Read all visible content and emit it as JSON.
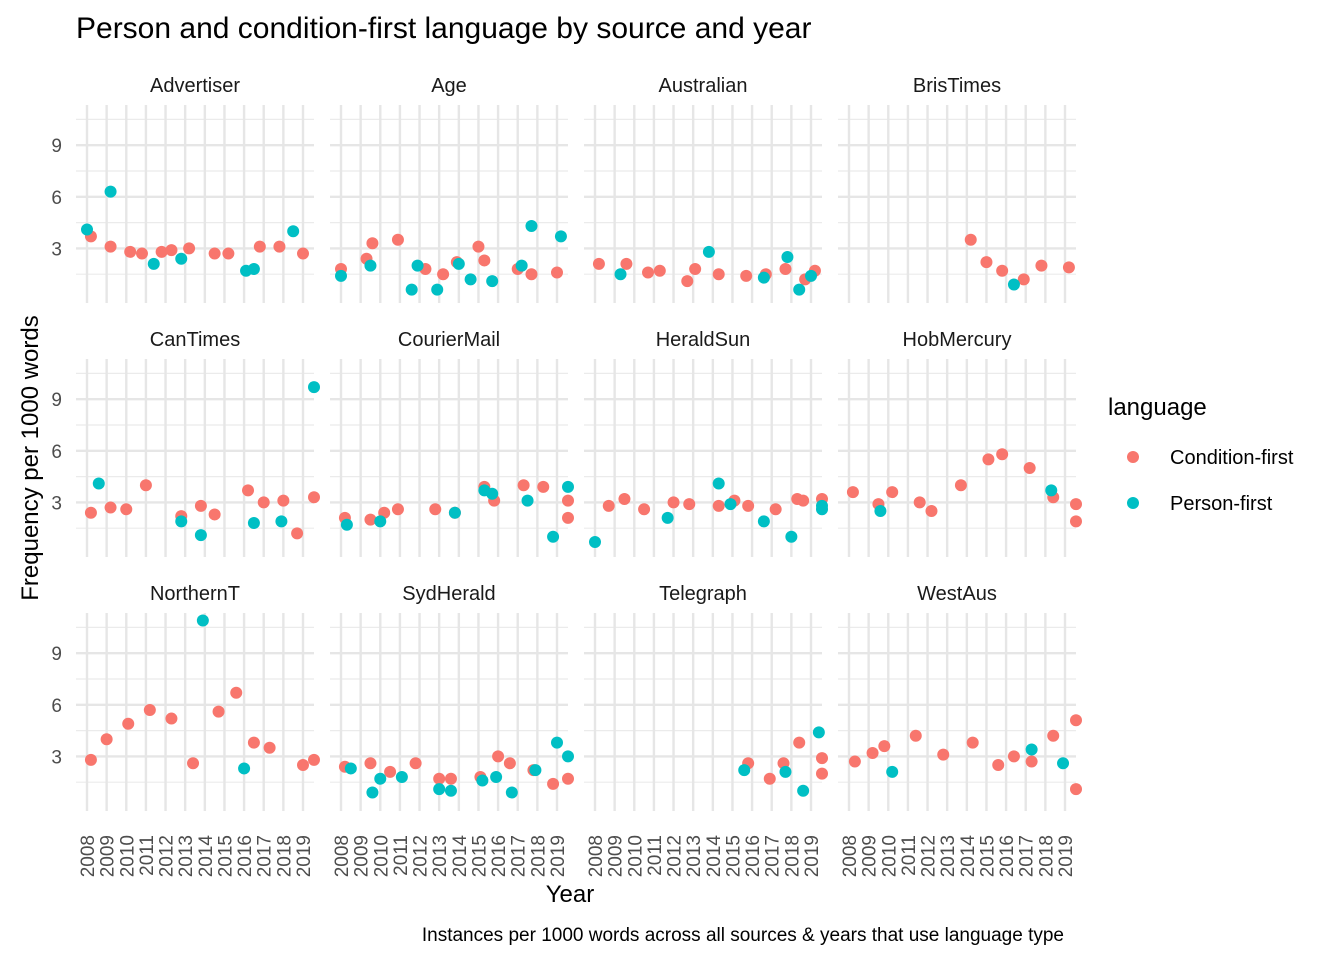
{
  "chart_data": {
    "type": "scatter",
    "title": "Person and condition-first language by source and year",
    "xlabel": "Year",
    "ylabel": "Frequency per 1000 words",
    "caption": "Instances per 1000 words across all sources & years that use language type",
    "x_ticks": [
      "2008",
      "2009",
      "2010",
      "2011",
      "2012",
      "2013",
      "2014",
      "2015",
      "2016",
      "2017",
      "2018",
      "2019"
    ],
    "y_ticks": [
      "3",
      "6",
      "9"
    ],
    "xlim": [
      2008,
      2019
    ],
    "ylim": [
      0,
      11
    ],
    "grid": true,
    "legend": {
      "title": "language",
      "position": "right",
      "items": [
        {
          "name": "Condition-first",
          "color": "#F8766D"
        },
        {
          "name": "Person-first",
          "color": "#00BFC4"
        }
      ]
    },
    "panels": [
      {
        "name": "Advertiser",
        "Condition-first": [
          [
            2008.2,
            3.7
          ],
          [
            2009.2,
            3.1
          ],
          [
            2010.2,
            2.8
          ],
          [
            2010.8,
            2.7
          ],
          [
            2011.8,
            2.8
          ],
          [
            2012.3,
            2.9
          ],
          [
            2013.2,
            3.0
          ],
          [
            2014.5,
            2.7
          ],
          [
            2015.2,
            2.7
          ],
          [
            2016.8,
            3.1
          ],
          [
            2017.8,
            3.1
          ],
          [
            2019.0,
            2.7
          ]
        ],
        "Person-first": [
          [
            2008.0,
            4.1
          ],
          [
            2009.2,
            6.3
          ],
          [
            2011.4,
            2.1
          ],
          [
            2012.8,
            2.4
          ],
          [
            2016.1,
            1.7
          ],
          [
            2016.5,
            1.8
          ],
          [
            2018.5,
            4.0
          ]
        ]
      },
      {
        "name": "Age",
        "Condition-first": [
          [
            2008.0,
            1.8
          ],
          [
            2009.3,
            2.4
          ],
          [
            2009.6,
            3.3
          ],
          [
            2010.9,
            3.5
          ],
          [
            2012.3,
            1.8
          ],
          [
            2013.2,
            1.5
          ],
          [
            2013.9,
            2.2
          ],
          [
            2015.0,
            3.1
          ],
          [
            2015.3,
            2.3
          ],
          [
            2017.0,
            1.8
          ],
          [
            2017.7,
            1.5
          ],
          [
            2019.0,
            1.6
          ]
        ],
        "Person-first": [
          [
            2008.0,
            1.4
          ],
          [
            2009.5,
            2.0
          ],
          [
            2011.6,
            0.6
          ],
          [
            2011.9,
            2.0
          ],
          [
            2012.9,
            0.6
          ],
          [
            2014.0,
            2.1
          ],
          [
            2014.6,
            1.2
          ],
          [
            2015.7,
            1.1
          ],
          [
            2017.2,
            2.0
          ],
          [
            2017.7,
            4.3
          ],
          [
            2019.2,
            3.7
          ]
        ]
      },
      {
        "name": "Australian",
        "Condition-first": [
          [
            2008.2,
            2.1
          ],
          [
            2009.6,
            2.1
          ],
          [
            2010.7,
            1.6
          ],
          [
            2011.3,
            1.7
          ],
          [
            2012.7,
            1.1
          ],
          [
            2013.1,
            1.8
          ],
          [
            2014.3,
            1.5
          ],
          [
            2015.7,
            1.4
          ],
          [
            2016.7,
            1.5
          ],
          [
            2017.7,
            1.8
          ],
          [
            2018.7,
            1.2
          ],
          [
            2019.2,
            1.7
          ]
        ],
        "Person-first": [
          [
            2009.3,
            1.5
          ],
          [
            2013.8,
            2.8
          ],
          [
            2016.6,
            1.3
          ],
          [
            2017.8,
            2.5
          ],
          [
            2018.4,
            0.6
          ],
          [
            2019.0,
            1.4
          ]
        ]
      },
      {
        "name": "BrisTimes",
        "Condition-first": [
          [
            2014.2,
            3.5
          ],
          [
            2015.0,
            2.2
          ],
          [
            2015.8,
            1.7
          ],
          [
            2016.9,
            1.2
          ],
          [
            2017.8,
            2.0
          ],
          [
            2019.2,
            1.9
          ]
        ],
        "Person-first": [
          [
            2016.4,
            0.9
          ]
        ]
      },
      {
        "name": "CanTimes",
        "Condition-first": [
          [
            2008.2,
            2.4
          ],
          [
            2009.2,
            2.7
          ],
          [
            2010.0,
            2.6
          ],
          [
            2011.0,
            4.0
          ],
          [
            2012.8,
            2.2
          ],
          [
            2013.8,
            2.8
          ],
          [
            2014.5,
            2.3
          ],
          [
            2016.2,
            3.7
          ],
          [
            2017.0,
            3.0
          ],
          [
            2018.0,
            3.1
          ],
          [
            2018.7,
            1.2
          ],
          [
            2020.0,
            3.3
          ]
        ],
        "Person-first": [
          [
            2008.6,
            4.1
          ],
          [
            2012.8,
            1.9
          ],
          [
            2013.8,
            1.1
          ],
          [
            2016.5,
            1.8
          ],
          [
            2017.9,
            1.9
          ],
          [
            2020.0,
            9.7
          ]
        ]
      },
      {
        "name": "CourierMail",
        "Condition-first": [
          [
            2008.2,
            2.1
          ],
          [
            2009.5,
            2.0
          ],
          [
            2010.2,
            2.4
          ],
          [
            2010.9,
            2.6
          ],
          [
            2012.8,
            2.6
          ],
          [
            2013.8,
            2.4
          ],
          [
            2015.3,
            3.9
          ],
          [
            2015.8,
            3.1
          ],
          [
            2017.3,
            4.0
          ],
          [
            2018.3,
            3.9
          ],
          [
            2019.6,
            2.1
          ],
          [
            2020.3,
            3.1
          ]
        ],
        "Person-first": [
          [
            2008.3,
            1.7
          ],
          [
            2010.0,
            1.9
          ],
          [
            2013.8,
            2.4
          ],
          [
            2015.3,
            3.7
          ],
          [
            2015.7,
            3.5
          ],
          [
            2017.5,
            3.1
          ],
          [
            2018.8,
            1.0
          ],
          [
            2019.6,
            3.9
          ]
        ]
      },
      {
        "name": "HeraldSun",
        "Condition-first": [
          [
            2008.7,
            2.8
          ],
          [
            2009.5,
            3.2
          ],
          [
            2010.5,
            2.6
          ],
          [
            2012.0,
            3.0
          ],
          [
            2012.8,
            2.9
          ],
          [
            2014.3,
            2.8
          ],
          [
            2015.1,
            3.1
          ],
          [
            2015.8,
            2.8
          ],
          [
            2017.2,
            2.6
          ],
          [
            2018.3,
            3.2
          ],
          [
            2018.6,
            3.1
          ],
          [
            2020.0,
            3.2
          ]
        ],
        "Person-first": [
          [
            2008.0,
            0.7
          ],
          [
            2011.7,
            2.1
          ],
          [
            2014.3,
            4.1
          ],
          [
            2014.9,
            2.9
          ],
          [
            2016.6,
            1.9
          ],
          [
            2018.0,
            1.0
          ],
          [
            2019.6,
            2.8
          ],
          [
            2020.3,
            2.6
          ]
        ]
      },
      {
        "name": "HobMercury",
        "Condition-first": [
          [
            2008.2,
            3.6
          ],
          [
            2009.5,
            2.9
          ],
          [
            2010.2,
            3.6
          ],
          [
            2011.6,
            3.0
          ],
          [
            2012.2,
            2.5
          ],
          [
            2013.7,
            4.0
          ],
          [
            2015.1,
            5.5
          ],
          [
            2015.8,
            5.8
          ],
          [
            2017.2,
            5.0
          ],
          [
            2018.4,
            3.3
          ],
          [
            2019.8,
            2.9
          ],
          [
            2020.3,
            1.9
          ]
        ],
        "Person-first": [
          [
            2009.6,
            2.5
          ],
          [
            2018.3,
            3.7
          ]
        ]
      },
      {
        "name": "NorthernT",
        "Condition-first": [
          [
            2008.2,
            2.8
          ],
          [
            2009.0,
            4.0
          ],
          [
            2010.1,
            4.9
          ],
          [
            2011.2,
            5.7
          ],
          [
            2012.3,
            5.2
          ],
          [
            2013.4,
            2.6
          ],
          [
            2014.7,
            5.6
          ],
          [
            2015.6,
            6.7
          ],
          [
            2016.5,
            3.8
          ],
          [
            2017.3,
            3.5
          ],
          [
            2019.0,
            2.5
          ],
          [
            2019.8,
            2.8
          ]
        ],
        "Person-first": [
          [
            2013.9,
            10.9
          ],
          [
            2016.0,
            2.3
          ]
        ]
      },
      {
        "name": "SydHerald",
        "Condition-first": [
          [
            2008.2,
            2.4
          ],
          [
            2009.5,
            2.6
          ],
          [
            2010.5,
            2.1
          ],
          [
            2011.8,
            2.6
          ],
          [
            2013.0,
            1.7
          ],
          [
            2013.6,
            1.7
          ],
          [
            2015.1,
            1.8
          ],
          [
            2016.0,
            3.0
          ],
          [
            2016.6,
            2.6
          ],
          [
            2017.8,
            2.2
          ],
          [
            2018.8,
            1.4
          ],
          [
            2019.8,
            1.7
          ]
        ],
        "Person-first": [
          [
            2008.5,
            2.3
          ],
          [
            2009.6,
            0.9
          ],
          [
            2010.0,
            1.7
          ],
          [
            2011.1,
            1.8
          ],
          [
            2013.0,
            1.1
          ],
          [
            2013.6,
            1.0
          ],
          [
            2015.2,
            1.6
          ],
          [
            2015.9,
            1.8
          ],
          [
            2016.7,
            0.9
          ],
          [
            2017.9,
            2.2
          ],
          [
            2019.0,
            3.8
          ],
          [
            2019.8,
            3.0
          ]
        ]
      },
      {
        "name": "Telegraph",
        "Condition-first": [
          [
            2015.8,
            2.6
          ],
          [
            2016.9,
            1.7
          ],
          [
            2017.6,
            2.6
          ],
          [
            2018.4,
            3.8
          ],
          [
            2019.6,
            2.0
          ],
          [
            2020.3,
            2.9
          ]
        ],
        "Person-first": [
          [
            2015.6,
            2.2
          ],
          [
            2017.7,
            2.1
          ],
          [
            2018.6,
            1.0
          ],
          [
            2019.4,
            4.4
          ]
        ]
      },
      {
        "name": "WestAus",
        "Condition-first": [
          [
            2008.3,
            2.7
          ],
          [
            2009.2,
            3.2
          ],
          [
            2009.8,
            3.6
          ],
          [
            2011.4,
            4.2
          ],
          [
            2012.8,
            3.1
          ],
          [
            2014.3,
            3.8
          ],
          [
            2015.6,
            2.5
          ],
          [
            2016.4,
            3.0
          ],
          [
            2017.3,
            2.7
          ],
          [
            2018.4,
            4.2
          ],
          [
            2020.0,
            5.1
          ],
          [
            2020.6,
            1.1
          ]
        ],
        "Person-first": [
          [
            2010.2,
            2.1
          ],
          [
            2017.3,
            3.4
          ],
          [
            2018.9,
            2.6
          ]
        ]
      }
    ]
  }
}
